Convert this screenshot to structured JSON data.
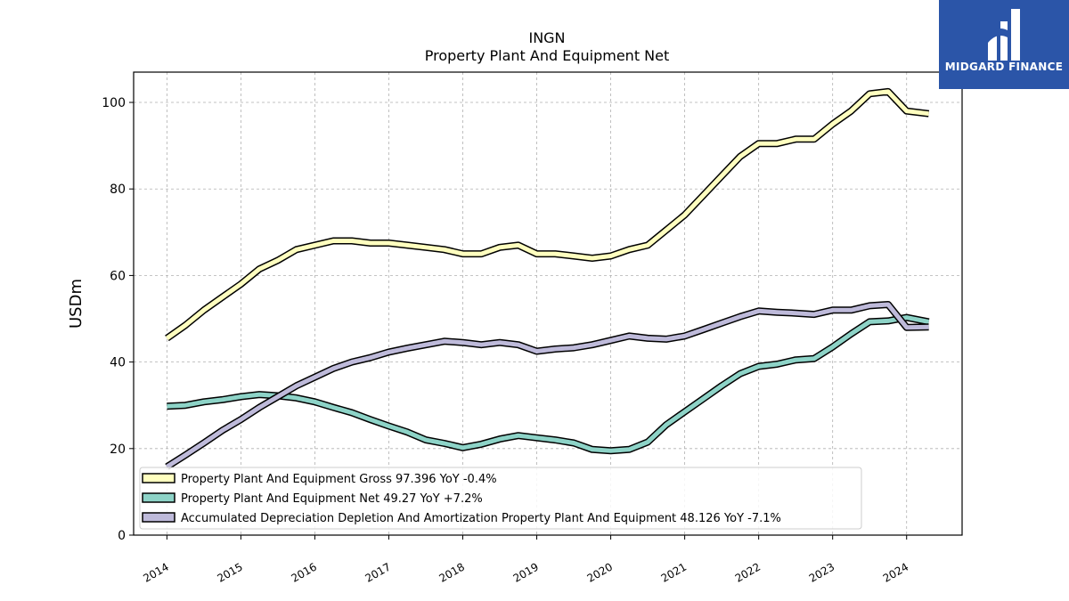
{
  "chart_data": {
    "type": "line",
    "title": "INGN",
    "subtitle": "Property Plant And Equipment Net",
    "ylabel": "USDm",
    "xlabel": "",
    "xlim": [
      2013.55,
      2024.75
    ],
    "ylim": [
      0,
      107
    ],
    "yticks": [
      0,
      20,
      40,
      60,
      80,
      100
    ],
    "xticks": [
      2014,
      2015,
      2016,
      2017,
      2018,
      2019,
      2020,
      2021,
      2022,
      2023,
      2024
    ],
    "grid": true,
    "legend_position": "lower-left",
    "series": [
      {
        "name": "Property Plant And Equipment Gross",
        "legend": "Property Plant And Equipment Gross  97.396 YoY -0.4%",
        "color": "#ffffbf",
        "x": [
          2014.0,
          2014.25,
          2014.5,
          2014.75,
          2015.0,
          2015.25,
          2015.5,
          2015.75,
          2016.0,
          2016.25,
          2016.5,
          2016.75,
          2017.0,
          2017.25,
          2017.5,
          2017.75,
          2018.0,
          2018.25,
          2018.5,
          2018.75,
          2019.0,
          2019.25,
          2019.5,
          2019.75,
          2020.0,
          2020.25,
          2020.5,
          2020.75,
          2021.0,
          2021.25,
          2021.5,
          2021.75,
          2022.0,
          2022.25,
          2022.5,
          2022.75,
          2023.0,
          2023.25,
          2023.5,
          2023.75,
          2024.0,
          2024.3
        ],
        "values": [
          45.5,
          48.5,
          52.0,
          55.0,
          58.0,
          61.5,
          63.5,
          66.0,
          67.0,
          68.0,
          68.0,
          67.5,
          67.5,
          67.0,
          66.5,
          66.0,
          65.0,
          65.0,
          66.5,
          67.0,
          65.0,
          65.0,
          64.5,
          64.0,
          64.5,
          66.0,
          67.0,
          70.5,
          74.0,
          78.5,
          83.0,
          87.5,
          90.5,
          90.5,
          91.5,
          91.5,
          95.0,
          98.0,
          102.0,
          102.5,
          98.0,
          97.4
        ]
      },
      {
        "name": "Property Plant And Equipment Net",
        "legend": "Property Plant And Equipment Net  49.27 YoY +7.2%",
        "color": "#8dd3c7",
        "x": [
          2014.0,
          2014.25,
          2014.5,
          2014.75,
          2015.0,
          2015.25,
          2015.5,
          2015.75,
          2016.0,
          2016.25,
          2016.5,
          2016.75,
          2017.0,
          2017.25,
          2017.5,
          2017.75,
          2018.0,
          2018.25,
          2018.5,
          2018.75,
          2019.0,
          2019.25,
          2019.5,
          2019.75,
          2020.0,
          2020.25,
          2020.5,
          2020.75,
          2021.0,
          2021.25,
          2021.5,
          2021.75,
          2022.0,
          2022.25,
          2022.5,
          2022.75,
          2023.0,
          2023.25,
          2023.5,
          2023.75,
          2024.0,
          2024.3
        ],
        "values": [
          29.8,
          30.0,
          30.8,
          31.3,
          32.0,
          32.5,
          32.2,
          31.7,
          30.8,
          29.5,
          28.3,
          26.7,
          25.2,
          23.8,
          22.0,
          21.2,
          20.2,
          21.0,
          22.2,
          23.0,
          22.5,
          22.0,
          21.3,
          19.8,
          19.5,
          19.8,
          21.5,
          25.5,
          28.5,
          31.5,
          34.5,
          37.3,
          39.0,
          39.5,
          40.5,
          40.8,
          43.5,
          46.5,
          49.3,
          49.5,
          50.3,
          49.3
        ]
      },
      {
        "name": "Accumulated Depreciation Depletion And Amortization Property Plant And Equipment",
        "legend": "Accumulated Depreciation Depletion And Amortization Property Plant And Equipment  48.126 YoY -7.1%",
        "color": "#bebada",
        "x": [
          2014.0,
          2014.25,
          2014.5,
          2014.75,
          2015.0,
          2015.25,
          2015.5,
          2015.75,
          2016.0,
          2016.25,
          2016.5,
          2016.75,
          2017.0,
          2017.25,
          2017.5,
          2017.75,
          2018.0,
          2018.25,
          2018.5,
          2018.75,
          2019.0,
          2019.25,
          2019.5,
          2019.75,
          2020.0,
          2020.25,
          2020.5,
          2020.75,
          2021.0,
          2021.25,
          2021.5,
          2021.75,
          2022.0,
          2022.25,
          2022.5,
          2022.75,
          2023.0,
          2023.25,
          2023.5,
          2023.75,
          2024.0,
          2024.3
        ],
        "values": [
          15.8,
          18.5,
          21.3,
          24.2,
          26.7,
          29.5,
          32.0,
          34.5,
          36.5,
          38.5,
          40.0,
          41.0,
          42.3,
          43.2,
          44.0,
          44.8,
          44.5,
          44.0,
          44.5,
          44.0,
          42.5,
          43.0,
          43.3,
          44.0,
          45.0,
          46.0,
          45.5,
          45.3,
          46.0,
          47.5,
          49.0,
          50.5,
          51.8,
          51.5,
          51.3,
          51.0,
          52.0,
          52.0,
          53.0,
          53.3,
          48.0,
          48.1
        ]
      }
    ]
  },
  "logo": {
    "text": "MIDGARD FINANCE"
  }
}
